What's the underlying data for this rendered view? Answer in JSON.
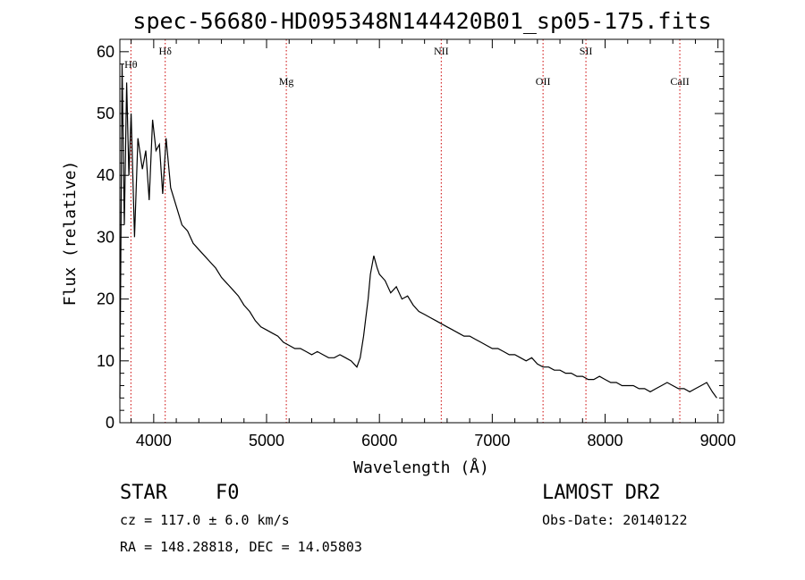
{
  "chart_data": {
    "type": "line",
    "title": "spec-56680-HD095348N144420B01_sp05-175.fits",
    "xlabel": "Wavelength (Å)",
    "ylabel": "Flux (relative)",
    "xlim": [
      3700,
      9050
    ],
    "ylim": [
      0,
      62
    ],
    "xticks": [
      4000,
      5000,
      6000,
      7000,
      8000,
      9000
    ],
    "yticks": [
      0,
      10,
      20,
      30,
      40,
      50,
      60
    ],
    "grid": false,
    "series": [
      {
        "x": [
          3700,
          3720,
          3740,
          3760,
          3780,
          3800,
          3830,
          3860,
          3900,
          3930,
          3960,
          3990,
          4020,
          4050,
          4080,
          4110,
          4150,
          4200,
          4250,
          4300,
          4350,
          4400,
          4450,
          4500,
          4550,
          4600,
          4650,
          4700,
          4750,
          4800,
          4850,
          4900,
          4950,
          5000,
          5050,
          5100,
          5150,
          5200,
          5250,
          5300,
          5350,
          5400,
          5450,
          5500,
          5550,
          5600,
          5650,
          5700,
          5750,
          5800,
          5830,
          5860,
          5880,
          5900,
          5920,
          5950,
          5980,
          6000,
          6050,
          6100,
          6150,
          6200,
          6250,
          6300,
          6350,
          6400,
          6450,
          6500,
          6550,
          6600,
          6650,
          6700,
          6750,
          6800,
          6850,
          6900,
          6950,
          7000,
          7050,
          7100,
          7150,
          7200,
          7250,
          7300,
          7350,
          7400,
          7450,
          7500,
          7550,
          7600,
          7650,
          7700,
          7750,
          7800,
          7850,
          7900,
          7950,
          8000,
          8050,
          8100,
          8150,
          8200,
          8250,
          8300,
          8350,
          8400,
          8450,
          8500,
          8550,
          8600,
          8650,
          8700,
          8750,
          8800,
          8850,
          8900,
          8950,
          8990
        ],
        "y": [
          4,
          58,
          32,
          55,
          40,
          50,
          30,
          46,
          41,
          44,
          36,
          49,
          44,
          45,
          37,
          46,
          38,
          35,
          32,
          31,
          29,
          28,
          27,
          26,
          25,
          23.5,
          22.5,
          21.5,
          20.5,
          19,
          18,
          16.5,
          15.5,
          15,
          14.5,
          14,
          13,
          12.5,
          12,
          12,
          11.5,
          11,
          11.5,
          11,
          10.5,
          10.5,
          11,
          10.5,
          10,
          9,
          10.5,
          14,
          17,
          20,
          24,
          27,
          25,
          24,
          23,
          21,
          22,
          20,
          20.5,
          19,
          18,
          17.5,
          17,
          16.5,
          16,
          15.5,
          15,
          14.5,
          14,
          14,
          13.5,
          13,
          12.5,
          12,
          12,
          11.5,
          11,
          11,
          10.5,
          10,
          10.5,
          9.5,
          9,
          9,
          8.5,
          8.5,
          8,
          8,
          7.5,
          7.5,
          7,
          7,
          7.5,
          7,
          6.5,
          6.5,
          6,
          6,
          6,
          5.5,
          5.5,
          5,
          5.5,
          6,
          6.5,
          6,
          5.5,
          5.5,
          5,
          5.5,
          6,
          6.5,
          5,
          4
        ]
      }
    ],
    "lines": [
      {
        "label": "Hθ",
        "x": 3798
      },
      {
        "label": "Hδ",
        "x": 4102
      },
      {
        "label": "Mg",
        "x": 5175
      },
      {
        "label": "NII",
        "x": 6548
      },
      {
        "label": "OII",
        "x": 7450
      },
      {
        "label": "SII",
        "x": 7830
      },
      {
        "label": "CaII",
        "x": 8662
      }
    ],
    "colors": {
      "spectrum": "#000000",
      "lines": "#cc0000"
    }
  },
  "info": {
    "object_type": "STAR",
    "subclass": "F0",
    "survey": "LAMOST DR2",
    "cz": "cz = 117.0 ± 6.0 km/s",
    "obs_date": "Obs-Date: 20140122",
    "coords": "RA = 148.28818, DEC =  14.05803"
  }
}
